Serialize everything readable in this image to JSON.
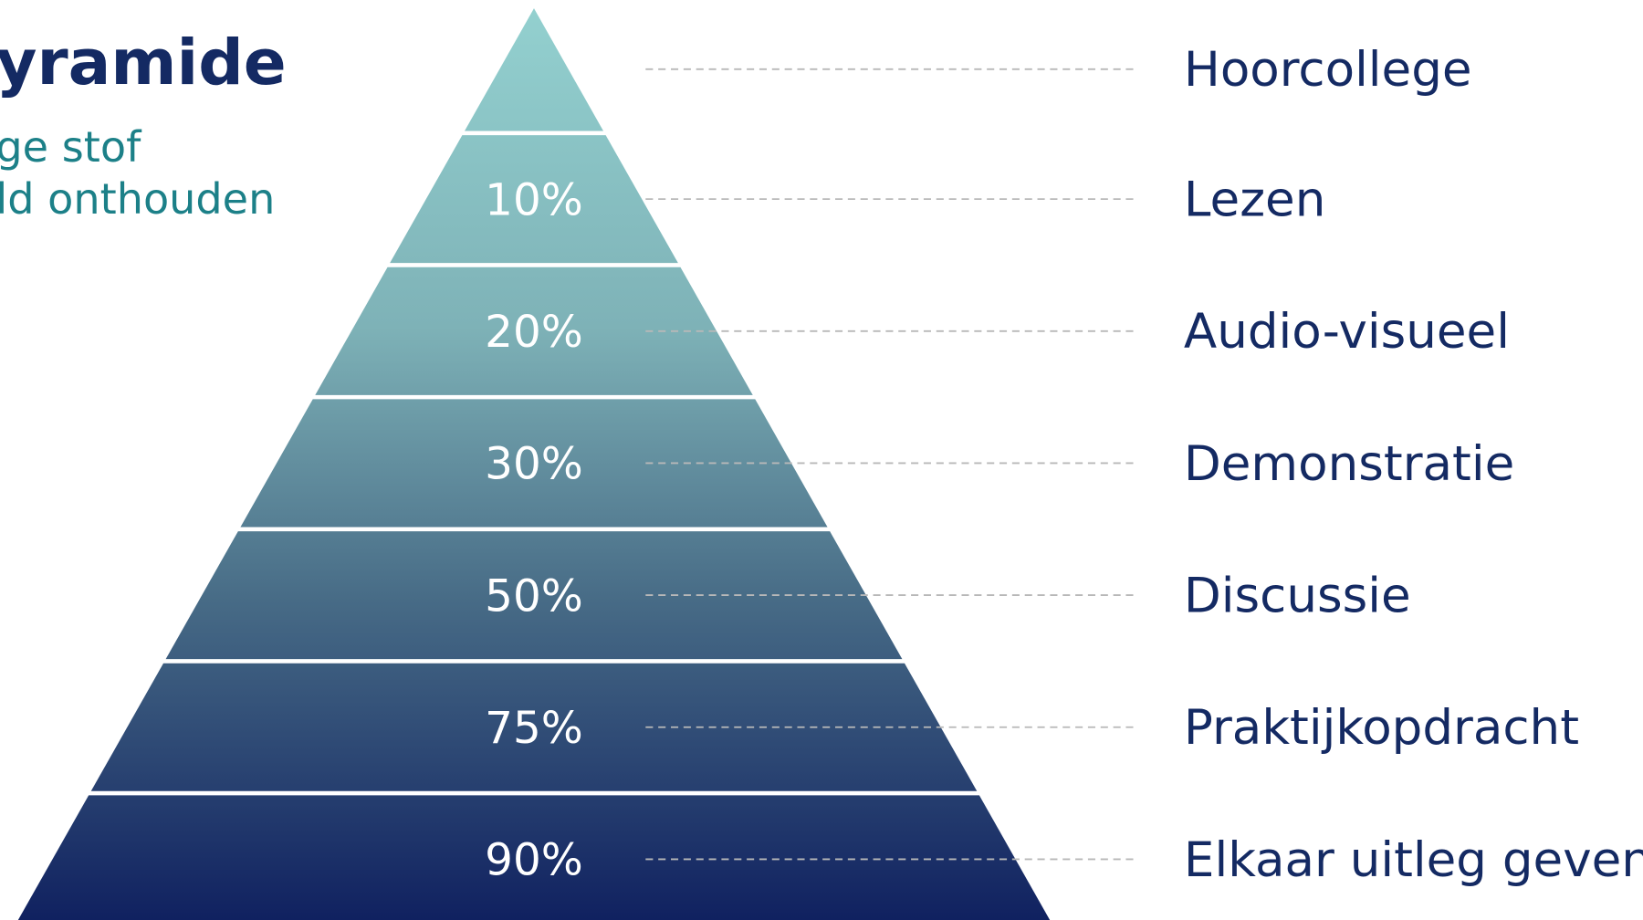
{
  "title": "yramide",
  "subtitle": [
    "ge stof",
    "ld onthouden"
  ],
  "levels": [
    {
      "label": "Hoorcollege"
    },
    {
      "label": "Lezen",
      "percentage": "10%"
    },
    {
      "label": "Audio-visueel",
      "percentage": "20%"
    },
    {
      "label": "Demonstratie",
      "percentage": "30%"
    },
    {
      "label": "Discussie",
      "percentage": "50%"
    },
    {
      "label": "Praktijkopdracht",
      "percentage": "75%"
    },
    {
      "label": "Elkaar uitleg geven",
      "percentage": "90%"
    }
  ]
}
